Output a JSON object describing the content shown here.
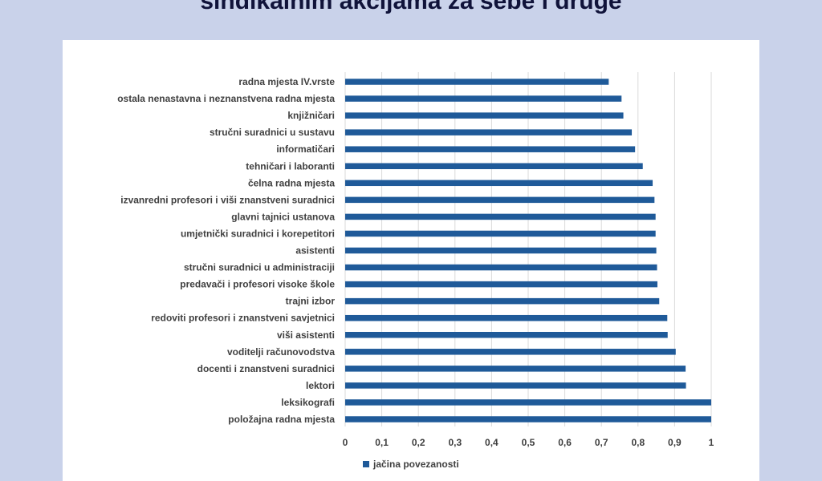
{
  "slide": {
    "title": "sindikalnim akcijama za sebe i druge"
  },
  "colors": {
    "bar": "#1f5a99",
    "gridline": "#d9d9d9",
    "background": "#c9d2ea"
  },
  "chart_data": {
    "type": "bar",
    "orientation": "horizontal",
    "title": "",
    "xlabel": "",
    "ylabel": "",
    "xlim": [
      0,
      1
    ],
    "ticks": [
      "0",
      "0,1",
      "0,2",
      "0,3",
      "0,4",
      "0,5",
      "0,6",
      "0,7",
      "0,8",
      "0,9",
      "1"
    ],
    "grid": true,
    "legend_position": "bottom",
    "categories": [
      "radna mjesta IV.vrste",
      "ostala nenastavna i neznanstvena radna mjesta",
      "knjižničari",
      "stručni suradnici u sustavu",
      "informatičari",
      "tehničari i laboranti",
      "čelna radna mjesta",
      "izvanredni profesori i viši znanstveni suradnici",
      "glavni tajnici ustanova",
      "umjetnički suradnici i korepetitori",
      "asistenti",
      "stručni suradnici u administraciji",
      "predavači i profesori visoke škole",
      "trajni izbor",
      "redoviti profesori i znanstveni savjetnici",
      "viši asistenti",
      "voditelji računovodstva",
      "docenti i znanstveni suradnici",
      "lektori",
      "leksikografi",
      "položajna radna mjesta"
    ],
    "series": [
      {
        "name": "jačina povezanosti",
        "values": [
          0.72,
          0.755,
          0.76,
          0.783,
          0.792,
          0.813,
          0.84,
          0.845,
          0.848,
          0.848,
          0.85,
          0.852,
          0.853,
          0.858,
          0.88,
          0.881,
          0.903,
          0.93,
          0.931,
          1.0,
          1.0
        ]
      }
    ]
  }
}
